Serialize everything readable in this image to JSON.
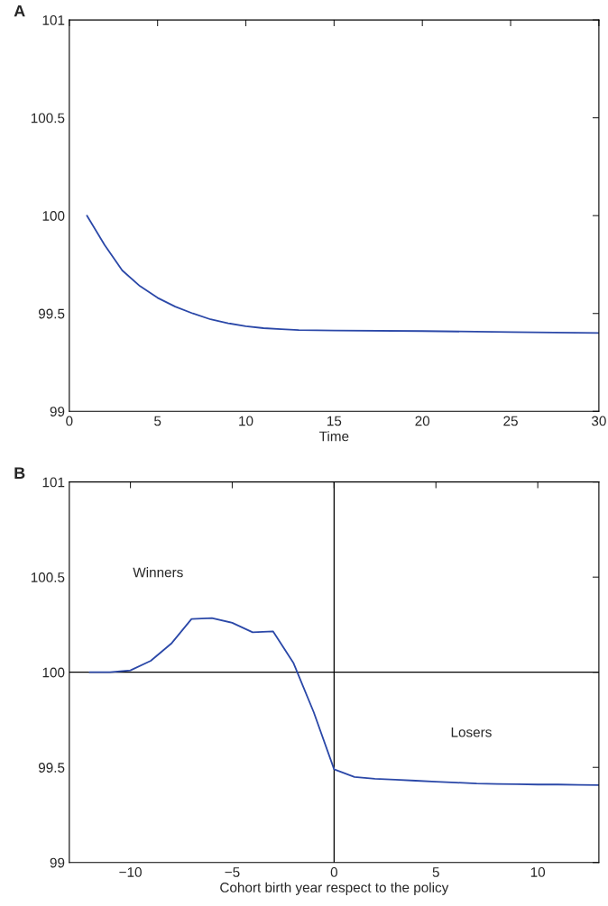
{
  "chart_data": [
    {
      "type": "line",
      "title": "A",
      "xlabel": "Time",
      "x": [
        1,
        2,
        3,
        4,
        5,
        6,
        7,
        8,
        9,
        10,
        11,
        12,
        13,
        15,
        20,
        25,
        30
      ],
      "series": [
        {
          "color": "#2b48a8",
          "values": [
            100,
            99.85,
            99.72,
            99.64,
            99.58,
            99.535,
            99.5,
            99.47,
            99.45,
            99.435,
            99.425,
            99.42,
            99.415,
            99.413,
            99.41,
            99.405,
            99.4
          ]
        }
      ],
      "xlim": [
        0,
        30
      ],
      "xticks": [
        0,
        5,
        10,
        15,
        20,
        25,
        30
      ],
      "ylim": [
        99,
        101
      ],
      "yticks": [
        99,
        99.5,
        100,
        100.5,
        101
      ],
      "grid": false
    },
    {
      "type": "line",
      "title": "B",
      "xlabel": "Cohort birth year respect to the policy",
      "x": [
        -12,
        -11,
        -10,
        -9,
        -8,
        -7,
        -6,
        -5,
        -4,
        -3,
        -2,
        -1,
        0,
        1,
        2,
        3,
        4,
        5,
        6,
        7,
        8,
        9,
        10,
        11,
        12,
        13
      ],
      "series": [
        {
          "color": "#2b48a8",
          "values": [
            100,
            100,
            100.01,
            100.06,
            100.15,
            100.28,
            100.285,
            100.26,
            100.21,
            100.215,
            100.05,
            99.79,
            99.49,
            99.45,
            99.44,
            99.435,
            99.43,
            99.425,
            99.42,
            99.415,
            99.413,
            99.412,
            99.41,
            99.41,
            99.408,
            99.407
          ]
        }
      ],
      "xlim": [
        -13,
        13
      ],
      "xticks": [
        {
          "value": -10,
          "label": "−10"
        },
        {
          "value": -5,
          "label": "−5"
        },
        0,
        5,
        10
      ],
      "ylim": [
        99,
        101
      ],
      "yticks": [
        99,
        99.5,
        100,
        100.5,
        101
      ],
      "grid": false,
      "ref_lines": [
        {
          "axis": "x",
          "value": 0,
          "color": "#000000"
        },
        {
          "axis": "y",
          "value": 100,
          "color": "#000000"
        }
      ],
      "annotations": [
        "Winners",
        "Losers"
      ]
    }
  ]
}
